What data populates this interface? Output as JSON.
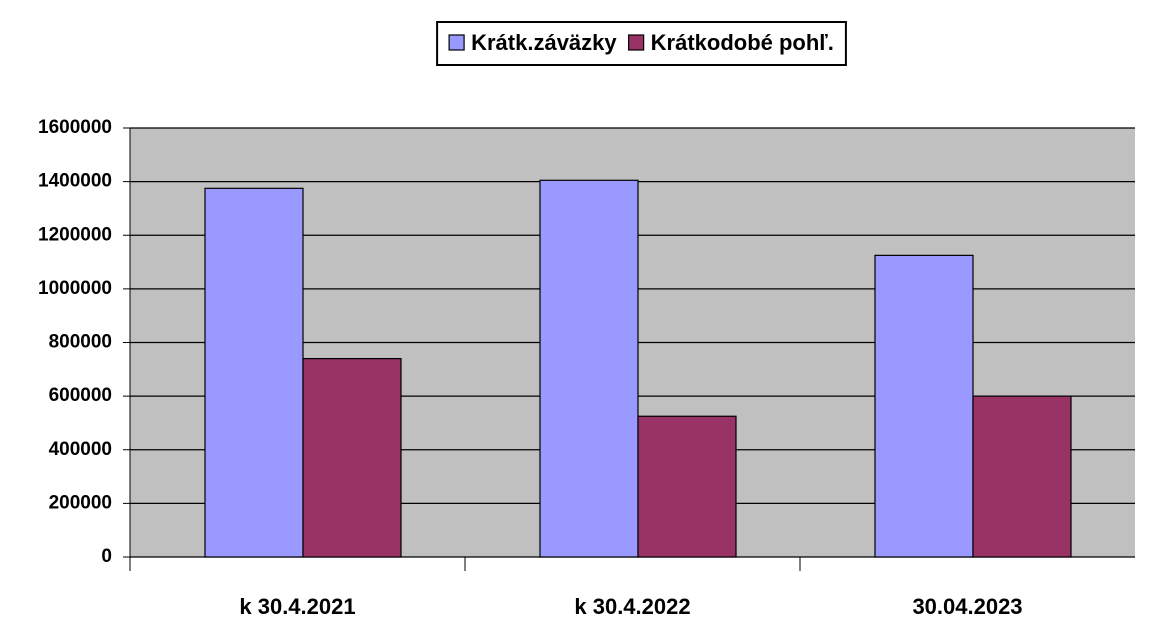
{
  "chart_data": {
    "type": "bar",
    "categories": [
      "k 30.4.2021",
      "k 30.4.2022",
      "30.04.2023"
    ],
    "series": [
      {
        "name": "Krátk.záväzky",
        "color": "#9999ff",
        "values": [
          1375000,
          1405000,
          1125000
        ]
      },
      {
        "name": "Krátkodobé pohľ.",
        "color": "#993366",
        "values": [
          740000,
          525000,
          600000
        ]
      }
    ],
    "ylim": [
      0,
      1600000
    ],
    "yticks": [
      0,
      200000,
      400000,
      600000,
      800000,
      1000000,
      1200000,
      1400000,
      1600000
    ],
    "grid": true,
    "legend": "top"
  }
}
